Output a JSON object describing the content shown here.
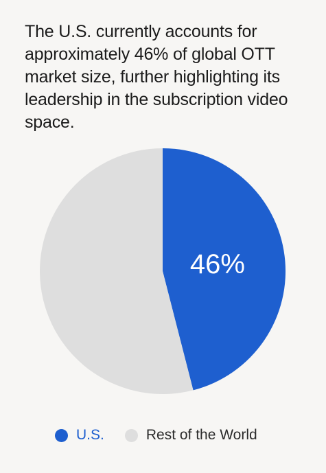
{
  "title": "The U.S. currently accounts for approximately 46% of global OTT market size, further highlighting its leadership in the subscription video space.",
  "chart_data": {
    "type": "pie",
    "title": "The U.S. currently accounts for approximately 46% of global OTT market size, further highlighting its leadership in the subscription video space.",
    "categories": [
      "U.S.",
      "Rest of the World"
    ],
    "values": [
      46,
      54
    ],
    "data_labels": [
      "46%",
      ""
    ],
    "colors": [
      "#1e5fcf",
      "#dedede"
    ],
    "start_angle_deg": 0,
    "direction": "clockwise",
    "legend": "bottom"
  },
  "legend": {
    "items": [
      {
        "label": "U.S.",
        "color": "#1e5fcf"
      },
      {
        "label": "Rest of the World",
        "color": "#dedede"
      }
    ]
  }
}
